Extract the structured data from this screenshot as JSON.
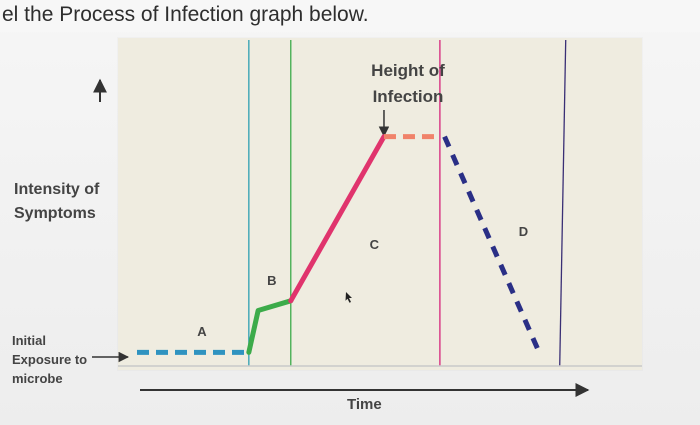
{
  "page": {
    "header_text": "el the Process of Infection graph below."
  },
  "chart_data": {
    "type": "line",
    "title": "",
    "ylabel": "Intensity of Symptoms",
    "xlabel": "Time",
    "start_label": "Initial Exposure to microbe",
    "peak_annotation": "Height of Infection",
    "grid": false,
    "xlim": [
      0,
      100
    ],
    "ylim": [
      0,
      100
    ],
    "dividers": [
      {
        "x": 24,
        "color": "#2e9fb2"
      },
      {
        "x": 33,
        "color": "#3cab4a"
      },
      {
        "x": 65,
        "color": "#d6247a"
      },
      {
        "x": 92,
        "color": "#3a2f75"
      }
    ],
    "segments": [
      {
        "label": "A",
        "color": "#2f93c0",
        "dash": true,
        "points": [
          [
            0,
            3
          ],
          [
            24,
            3
          ]
        ],
        "label_at": [
          14,
          9
        ]
      },
      {
        "label": "B",
        "color": "#3cab4a",
        "dash": false,
        "points": [
          [
            24,
            3
          ],
          [
            26,
            16
          ],
          [
            33,
            19
          ]
        ],
        "label_at": [
          29,
          25
        ]
      },
      {
        "label": "C",
        "color": "#e0346d",
        "dash": false,
        "points": [
          [
            33,
            19
          ],
          [
            53,
            70
          ]
        ],
        "label_at": [
          51,
          36
        ]
      },
      {
        "label": "",
        "color": "#f0826a",
        "dash": true,
        "points": [
          [
            53,
            70
          ],
          [
            65,
            70
          ]
        ],
        "label_at": null
      },
      {
        "label": "D",
        "color": "#2a2f86",
        "dash": true,
        "points": [
          [
            66,
            70
          ],
          [
            86,
            4
          ]
        ],
        "label_at": [
          83,
          40
        ]
      }
    ]
  }
}
